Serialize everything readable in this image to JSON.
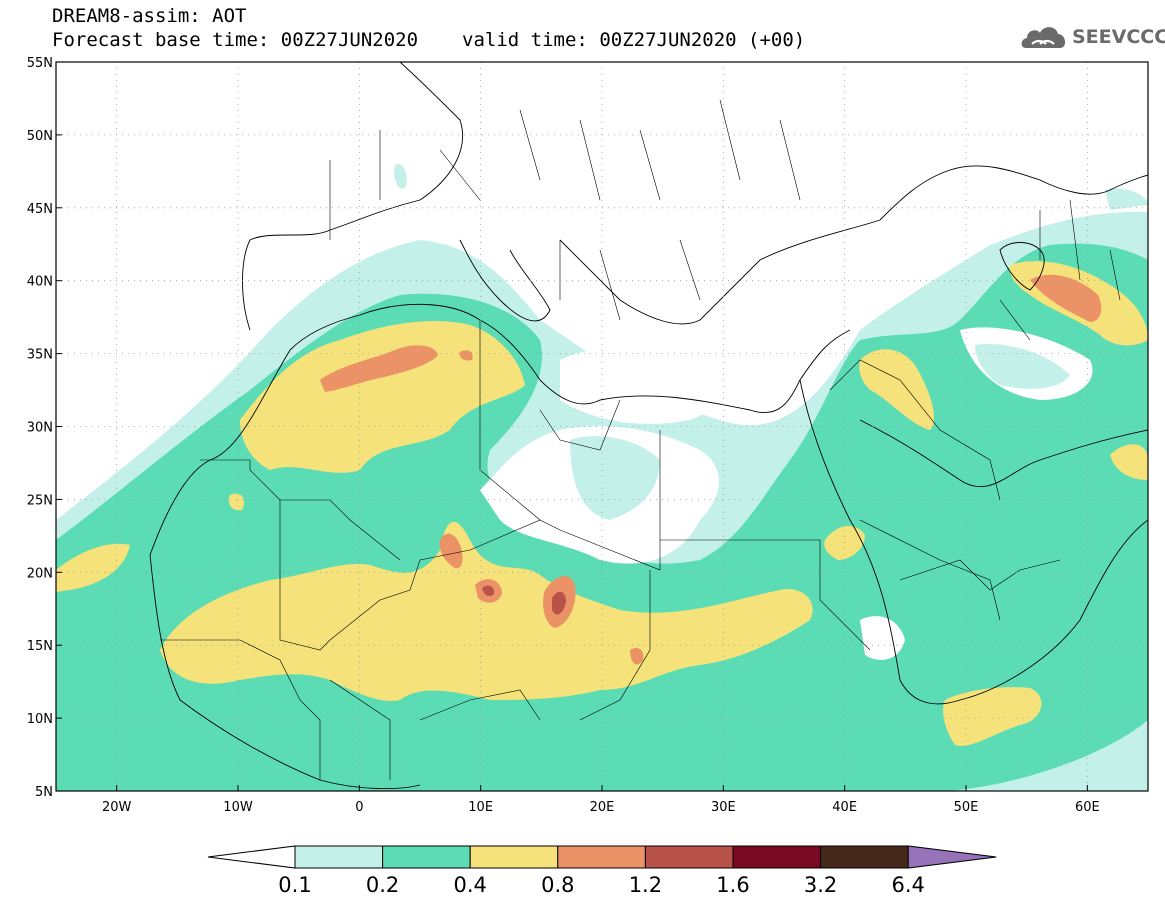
{
  "header": {
    "title": "DREAM8-assim: AOT",
    "base_time": "Forecast base time: 00Z27JUN2020",
    "valid_time": "valid time: 00Z27JUN2020 (+00)"
  },
  "logo": {
    "text": "SEEVCCC",
    "icon": "cloud-icon"
  },
  "map": {
    "lon_range": [
      -25,
      65
    ],
    "lat_range": [
      5,
      55
    ],
    "lat_ticks": [
      {
        "value": 55,
        "label": "55N"
      },
      {
        "value": 50,
        "label": "50N"
      },
      {
        "value": 45,
        "label": "45N"
      },
      {
        "value": 40,
        "label": "40N"
      },
      {
        "value": 35,
        "label": "35N"
      },
      {
        "value": 30,
        "label": "30N"
      },
      {
        "value": 25,
        "label": "25N"
      },
      {
        "value": 20,
        "label": "20N"
      },
      {
        "value": 15,
        "label": "15N"
      },
      {
        "value": 10,
        "label": "10N"
      },
      {
        "value": 5,
        "label": "5N"
      }
    ],
    "lon_ticks": [
      {
        "value": -20,
        "label": "20W"
      },
      {
        "value": -10,
        "label": "10W"
      },
      {
        "value": 0,
        "label": "0"
      },
      {
        "value": 10,
        "label": "10E"
      },
      {
        "value": 20,
        "label": "20E"
      },
      {
        "value": 30,
        "label": "30E"
      },
      {
        "value": 40,
        "label": "40E"
      },
      {
        "value": 50,
        "label": "50E"
      },
      {
        "value": 60,
        "label": "60E"
      }
    ]
  },
  "colorbar": {
    "labels": [
      "0.1",
      "0.2",
      "0.4",
      "0.8",
      "1.2",
      "1.6",
      "3.2",
      "6.4"
    ],
    "colors": [
      "#ffffff",
      "#c4f0ea",
      "#5bdcb4",
      "#f5e27a",
      "#eb9266",
      "#b9534a",
      "#7a0a24",
      "#45281a",
      "#9673b8"
    ]
  }
}
